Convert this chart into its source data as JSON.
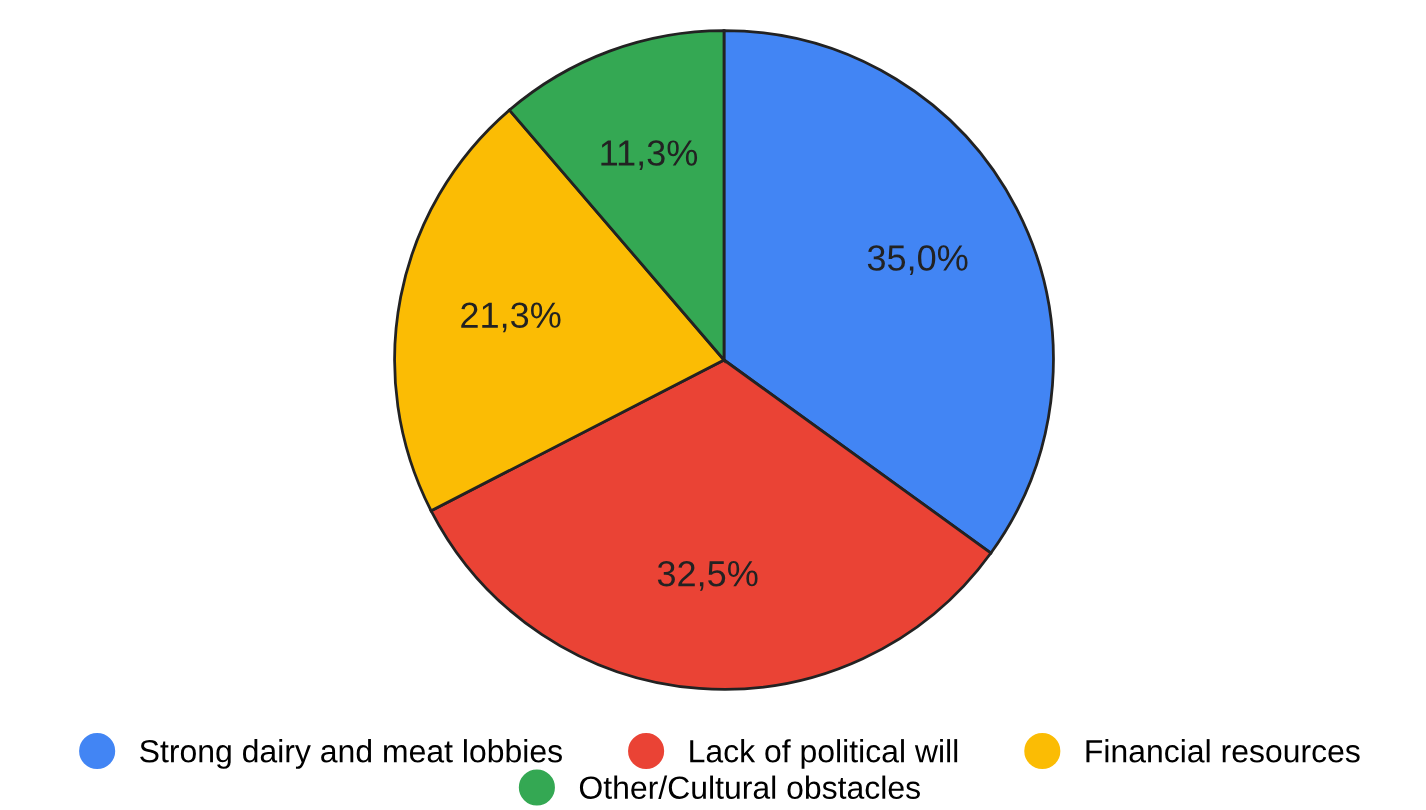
{
  "chart_data": {
    "type": "pie",
    "categories": [
      "Strong dairy and meat lobbies",
      "Lack of political will",
      "Financial resources",
      "Other/Cultural obstacles"
    ],
    "values": [
      35.0,
      32.5,
      21.3,
      11.3
    ],
    "colors": [
      "#4285f4",
      "#ea4335",
      "#fbbc04",
      "#34a853"
    ],
    "value_labels": [
      "35,0%",
      "32,5%",
      "21,3%",
      "11,3%"
    ],
    "legend": "bottom"
  }
}
